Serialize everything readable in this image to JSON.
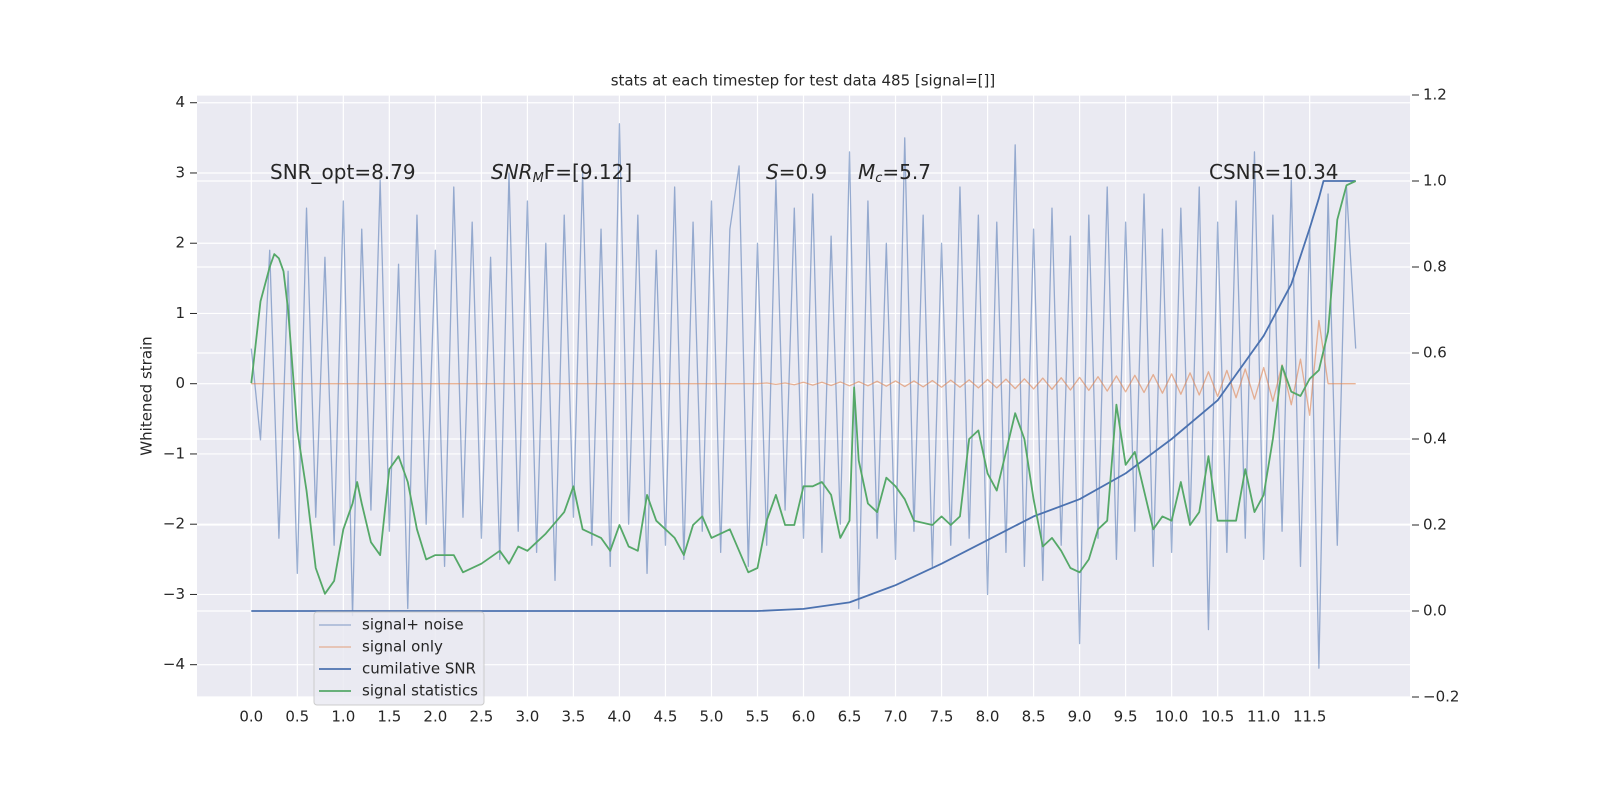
{
  "chart_data": {
    "type": "line",
    "title": "stats at each timestep for test data 485 [signal=[]]",
    "ylabel": "Whitened strain",
    "xlim": [
      -0.59,
      12.59
    ],
    "ylim": [
      -4.46,
      4.11
    ],
    "y2lim": [
      -0.2,
      1.2
    ],
    "xticks": [
      {
        "value": 0,
        "label": "0.0"
      },
      0.5,
      {
        "value": 1,
        "label": "1.0"
      },
      1.5,
      {
        "value": 2,
        "label": "2.0"
      },
      2.5,
      {
        "value": 3,
        "label": "3.0"
      },
      3.5,
      {
        "value": 4,
        "label": "4.0"
      },
      4.5,
      {
        "value": 5,
        "label": "5.0"
      },
      5.5,
      {
        "value": 6,
        "label": "6.0"
      },
      6.5,
      {
        "value": 7,
        "label": "7.0"
      },
      7.5,
      {
        "value": 8,
        "label": "8.0"
      },
      8.5,
      {
        "value": 9,
        "label": "9.0"
      },
      9.5,
      {
        "value": 10,
        "label": "10.0"
      },
      10.5,
      {
        "value": 11,
        "label": "11.0"
      },
      11.5
    ],
    "yticks": [
      {
        "value": -4,
        "label": "−4"
      },
      {
        "value": -3,
        "label": "−3"
      },
      {
        "value": -2,
        "label": "−2"
      },
      {
        "value": -1,
        "label": "−1"
      },
      0,
      1,
      2,
      3,
      4
    ],
    "y2ticks": [
      {
        "value": -0.2,
        "label": "−0.2"
      },
      {
        "value": 0,
        "label": "0.0"
      },
      0.2,
      0.4,
      0.6,
      0.8,
      {
        "value": 1,
        "label": "1.0"
      },
      1.2
    ],
    "grid": true,
    "legend": "lower left",
    "annotations": [
      {
        "text": "SNR_opt=8.79"
      },
      {
        "main": "SNR",
        "sub": "M",
        "rest": "F=[9.12]"
      },
      {
        "main": "S",
        "rest": "=0.9"
      },
      {
        "main": "M",
        "sub": "c",
        "rest": "=5.7"
      },
      {
        "text": "CSNR=10.34"
      }
    ],
    "series": [
      {
        "name": "signal+ noise",
        "color": "#4c72b0",
        "x": [
          0,
          0.1,
          0.2,
          0.3,
          0.4,
          0.5,
          0.6,
          0.7,
          0.8,
          0.9,
          1.0,
          1.1,
          1.2,
          1.3,
          1.4,
          1.5,
          1.6,
          1.7,
          1.8,
          1.9,
          2.0,
          2.1,
          2.2,
          2.3,
          2.4,
          2.5,
          2.6,
          2.7,
          2.8,
          2.9,
          3.0,
          3.1,
          3.2,
          3.3,
          3.4,
          3.5,
          3.6,
          3.7,
          3.8,
          3.9,
          4.0,
          4.1,
          4.2,
          4.3,
          4.4,
          4.5,
          4.6,
          4.7,
          4.8,
          4.9,
          5.0,
          5.1,
          5.2,
          5.3,
          5.4,
          5.5,
          5.6,
          5.7,
          5.8,
          5.9,
          6.0,
          6.1,
          6.2,
          6.3,
          6.4,
          6.5,
          6.6,
          6.7,
          6.8,
          6.9,
          7.0,
          7.1,
          7.2,
          7.3,
          7.4,
          7.5,
          7.6,
          7.7,
          7.8,
          7.9,
          8.0,
          8.1,
          8.2,
          8.3,
          8.4,
          8.5,
          8.6,
          8.7,
          8.8,
          8.9,
          9.0,
          9.1,
          9.2,
          9.3,
          9.4,
          9.5,
          9.6,
          9.7,
          9.8,
          9.9,
          10.0,
          10.1,
          10.2,
          10.3,
          10.4,
          10.5,
          10.6,
          10.7,
          10.8,
          10.9,
          11.0,
          11.1,
          11.2,
          11.3,
          11.4,
          11.5,
          11.6,
          11.7,
          11.8,
          11.9,
          12.0
        ],
        "values": [
          0.5,
          -0.8,
          1.9,
          -2.2,
          1.6,
          -2.7,
          2.5,
          -1.9,
          1.8,
          -2.3,
          2.6,
          -3.3,
          2.2,
          -1.8,
          2.9,
          -2.1,
          1.7,
          -3.2,
          2.4,
          -2.0,
          1.9,
          -2.6,
          2.8,
          -1.9,
          2.3,
          -2.2,
          1.8,
          -2.5,
          3.0,
          -2.1,
          2.6,
          -2.4,
          2.0,
          -2.8,
          2.4,
          -1.9,
          3.0,
          -2.3,
          2.2,
          -2.6,
          3.7,
          -2.0,
          2.4,
          -2.7,
          1.9,
          -2.3,
          2.8,
          -2.5,
          2.3,
          -2.1,
          2.6,
          -2.4,
          2.2,
          3.1,
          -2.6,
          2.0,
          -2.3,
          2.9,
          -1.8,
          2.5,
          -2.2,
          2.7,
          -2.4,
          2.1,
          -2.0,
          3.3,
          -3.2,
          2.6,
          -2.2,
          2.0,
          -2.5,
          3.5,
          -2.1,
          2.4,
          -2.6,
          2.0,
          -2.3,
          2.8,
          -2.2,
          2.4,
          -3.0,
          2.3,
          -2.4,
          3.4,
          -2.6,
          2.2,
          -2.8,
          2.5,
          -2.3,
          2.1,
          -3.7,
          2.4,
          -2.2,
          2.8,
          -2.5,
          2.3,
          -2.1,
          2.7,
          -2.6,
          2.2,
          -2.4,
          2.5,
          -2.0,
          2.8,
          -3.5,
          2.3,
          -2.4,
          2.6,
          -2.2,
          3.3,
          -2.5,
          2.4,
          -2.1,
          2.9,
          -2.6,
          2.2,
          -4.05,
          2.7,
          -2.3,
          2.8,
          0.5
        ]
      },
      {
        "name": "signal only",
        "color": "#dd8452",
        "x": [
          0,
          0.1,
          0.2,
          0.3,
          0.4,
          0.5,
          0.6,
          0.7,
          0.8,
          0.9,
          1.0,
          1.1,
          1.2,
          1.3,
          1.4,
          1.5,
          1.6,
          1.7,
          1.8,
          1.9,
          2.0,
          2.1,
          2.2,
          2.3,
          2.4,
          2.5,
          2.6,
          2.7,
          2.8,
          2.9,
          3.0,
          3.1,
          3.2,
          3.3,
          3.4,
          3.5,
          3.6,
          3.7,
          3.8,
          3.9,
          4.0,
          4.1,
          4.2,
          4.3,
          4.4,
          4.5,
          4.6,
          4.7,
          4.8,
          4.9,
          5.0,
          5.1,
          5.2,
          5.3,
          5.4,
          5.5,
          5.6,
          5.7,
          5.8,
          5.9,
          6.0,
          6.1,
          6.2,
          6.3,
          6.4,
          6.5,
          6.6,
          6.7,
          6.8,
          6.9,
          7.0,
          7.1,
          7.2,
          7.3,
          7.4,
          7.5,
          7.6,
          7.7,
          7.8,
          7.9,
          8.0,
          8.1,
          8.2,
          8.3,
          8.4,
          8.5,
          8.6,
          8.7,
          8.8,
          8.9,
          9.0,
          9.1,
          9.2,
          9.3,
          9.4,
          9.5,
          9.6,
          9.7,
          9.8,
          9.9,
          10.0,
          10.1,
          10.2,
          10.3,
          10.4,
          10.5,
          10.6,
          10.7,
          10.8,
          10.9,
          11.0,
          11.1,
          11.2,
          11.3,
          11.4,
          11.5,
          11.6,
          11.7,
          11.8,
          11.9,
          12.0
        ],
        "values": [
          0,
          0,
          0,
          0,
          0,
          0,
          0,
          0,
          0,
          0,
          0,
          0,
          0,
          0,
          0,
          0,
          0,
          0,
          0,
          0,
          0,
          0,
          0,
          0,
          0,
          0,
          0,
          0,
          0,
          0,
          0,
          0,
          0,
          0,
          0,
          0,
          0,
          0,
          0,
          0,
          0,
          0,
          0,
          0,
          0,
          0,
          0,
          0,
          0,
          0,
          0,
          0,
          0,
          0,
          0,
          0,
          0.01,
          -0.01,
          0.01,
          -0.015,
          0.02,
          -0.02,
          0.02,
          -0.025,
          0.025,
          -0.03,
          0.03,
          -0.03,
          0.035,
          -0.035,
          0.04,
          -0.04,
          0.04,
          -0.045,
          0.045,
          -0.05,
          0.05,
          -0.05,
          0.055,
          -0.06,
          0.06,
          -0.06,
          0.065,
          -0.07,
          0.07,
          -0.075,
          0.08,
          -0.08,
          0.085,
          -0.09,
          0.09,
          -0.095,
          0.1,
          -0.105,
          0.11,
          -0.115,
          0.12,
          -0.125,
          0.13,
          -0.135,
          0.14,
          -0.15,
          0.155,
          -0.16,
          0.17,
          -0.18,
          0.19,
          -0.2,
          0.21,
          -0.22,
          0.23,
          -0.25,
          0.27,
          -0.3,
          0.35,
          -0.45,
          0.9,
          0,
          0,
          0,
          0
        ]
      },
      {
        "name": "cumilative SNR",
        "color": "#4c72b0",
        "axis": "y2",
        "x": [
          0,
          5.5,
          6.0,
          6.5,
          7.0,
          7.5,
          8.0,
          8.5,
          9.0,
          9.5,
          10.0,
          10.5,
          11.0,
          11.3,
          11.5,
          11.6,
          11.65,
          12.0
        ],
        "values": [
          0,
          0,
          0.005,
          0.02,
          0.06,
          0.11,
          0.165,
          0.22,
          0.26,
          0.32,
          0.4,
          0.49,
          0.64,
          0.76,
          0.89,
          0.96,
          1.0,
          1.0
        ]
      },
      {
        "name": "signal statistics",
        "color": "#55a868",
        "axis": "y2",
        "x": [
          0,
          0.1,
          0.2,
          0.25,
          0.3,
          0.35,
          0.4,
          0.5,
          0.6,
          0.7,
          0.8,
          0.9,
          1.0,
          1.1,
          1.15,
          1.2,
          1.3,
          1.4,
          1.5,
          1.6,
          1.7,
          1.8,
          1.9,
          2.0,
          2.2,
          2.3,
          2.5,
          2.7,
          2.8,
          2.9,
          3.0,
          3.2,
          3.4,
          3.5,
          3.6,
          3.8,
          3.9,
          4.0,
          4.1,
          4.2,
          4.3,
          4.4,
          4.6,
          4.7,
          4.8,
          4.9,
          5.0,
          5.2,
          5.4,
          5.5,
          5.6,
          5.7,
          5.8,
          5.9,
          6.0,
          6.1,
          6.2,
          6.3,
          6.4,
          6.5,
          6.55,
          6.6,
          6.7,
          6.8,
          6.9,
          7.0,
          7.1,
          7.2,
          7.4,
          7.5,
          7.6,
          7.7,
          7.8,
          7.9,
          8.0,
          8.1,
          8.2,
          8.3,
          8.4,
          8.5,
          8.6,
          8.7,
          8.8,
          8.9,
          9.0,
          9.1,
          9.2,
          9.3,
          9.4,
          9.5,
          9.6,
          9.7,
          9.8,
          9.9,
          10.0,
          10.1,
          10.2,
          10.3,
          10.4,
          10.5,
          10.7,
          10.8,
          10.9,
          11.0,
          11.1,
          11.2,
          11.3,
          11.4,
          11.5,
          11.6,
          11.7,
          11.8,
          11.9,
          12.0
        ],
        "values": [
          0.53,
          0.72,
          0.8,
          0.83,
          0.82,
          0.79,
          0.7,
          0.42,
          0.28,
          0.1,
          0.04,
          0.07,
          0.19,
          0.25,
          0.3,
          0.25,
          0.16,
          0.13,
          0.33,
          0.36,
          0.3,
          0.19,
          0.12,
          0.13,
          0.13,
          0.09,
          0.11,
          0.14,
          0.11,
          0.15,
          0.14,
          0.18,
          0.23,
          0.29,
          0.19,
          0.17,
          0.14,
          0.2,
          0.15,
          0.14,
          0.27,
          0.21,
          0.17,
          0.13,
          0.2,
          0.22,
          0.17,
          0.19,
          0.09,
          0.1,
          0.21,
          0.27,
          0.2,
          0.2,
          0.29,
          0.29,
          0.3,
          0.27,
          0.17,
          0.21,
          0.52,
          0.35,
          0.25,
          0.23,
          0.31,
          0.29,
          0.26,
          0.21,
          0.2,
          0.22,
          0.2,
          0.22,
          0.4,
          0.42,
          0.32,
          0.28,
          0.37,
          0.46,
          0.4,
          0.26,
          0.15,
          0.17,
          0.14,
          0.1,
          0.09,
          0.12,
          0.19,
          0.21,
          0.48,
          0.34,
          0.37,
          0.28,
          0.19,
          0.22,
          0.21,
          0.3,
          0.2,
          0.23,
          0.36,
          0.21,
          0.21,
          0.33,
          0.23,
          0.27,
          0.4,
          0.57,
          0.51,
          0.5,
          0.54,
          0.56,
          0.65,
          0.91,
          0.99,
          1.0
        ]
      }
    ]
  }
}
